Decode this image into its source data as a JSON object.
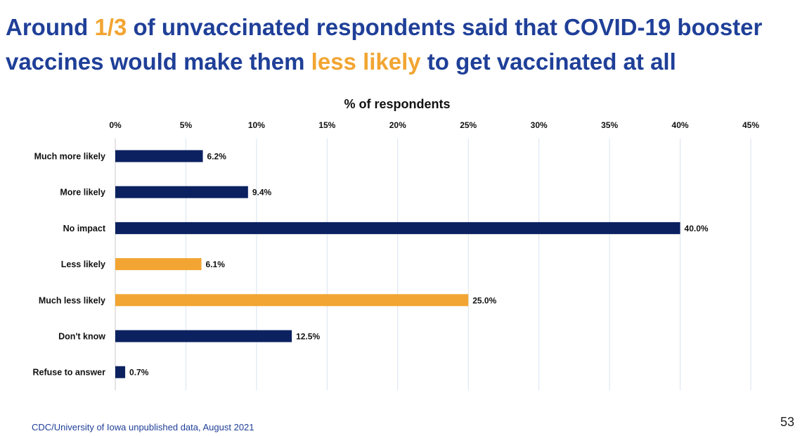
{
  "slide": {
    "title_parts": [
      {
        "text": "Around ",
        "accent": false
      },
      {
        "text": "1/3",
        "accent": true
      },
      {
        "text": " of unvaccinated respondents said that COVID-19 booster vaccines would make them ",
        "accent": false
      },
      {
        "text": "less likely",
        "accent": true
      },
      {
        "text": " to get vaccinated at all",
        "accent": false
      }
    ],
    "source": "CDC/University of Iowa unpublished data, August 2021",
    "page_number": "53"
  },
  "colors": {
    "title": "#1f3f98",
    "accent": "#f2a532",
    "bar_navy": "#0b2160",
    "bar_orange": "#f2a532",
    "gridline": "#d9e2f1"
  },
  "chart_data": {
    "type": "bar",
    "orientation": "horizontal",
    "title": "",
    "xlabel": "% of respondents",
    "ylabel": "",
    "xlim": [
      0,
      45
    ],
    "x_axis_position": "top",
    "grid": true,
    "legend": "none",
    "ticks": [
      "0%",
      "5%",
      "10%",
      "15%",
      "20%",
      "25%",
      "30%",
      "35%",
      "40%",
      "45%"
    ],
    "categories": [
      "Much more likely",
      "More likely",
      "No impact",
      "Less likely",
      "Much less likely",
      "Don't know",
      "Refuse to answer"
    ],
    "values": [
      6.2,
      9.4,
      40.0,
      6.1,
      25.0,
      12.5,
      0.7
    ],
    "value_labels": [
      "6.2%",
      "9.4%",
      "40.0%",
      "6.1%",
      "25.0%",
      "12.5%",
      "0.7%"
    ],
    "bar_colors": [
      "#0b2160",
      "#0b2160",
      "#0b2160",
      "#f2a532",
      "#f2a532",
      "#0b2160",
      "#0b2160"
    ]
  }
}
